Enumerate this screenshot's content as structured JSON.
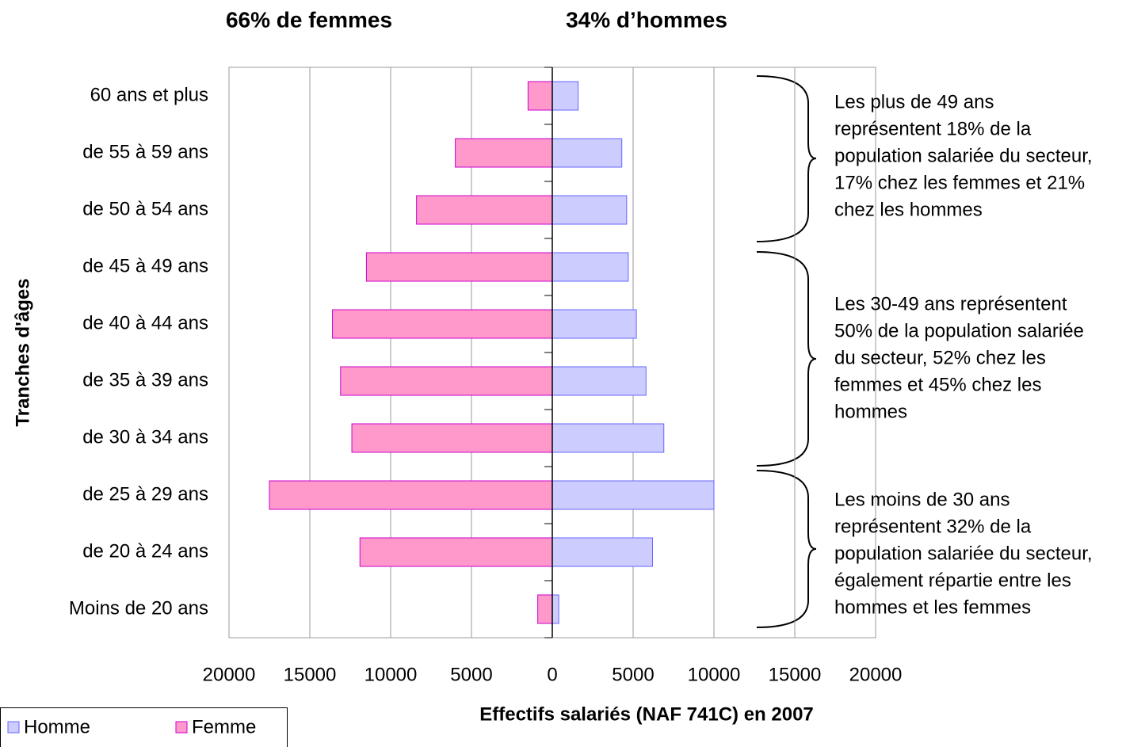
{
  "chart_data": {
    "type": "bar",
    "orientation": "horizontal",
    "headers": [
      {
        "text": "66% de femmes",
        "color": "#cc0099"
      },
      {
        "text": "34% d’hommes",
        "color": "#000000"
      }
    ],
    "xlabel": "Effectifs salariés (NAF 741C) en 2007",
    "ylabel": "Tranches d'âges",
    "categories": [
      "Moins de 20 ans",
      "de 20 à 24 ans",
      "de 25 à 29 ans",
      "de 30 à 34 ans",
      "de 35 à 39 ans",
      "de 40 à 44 ans",
      "de 45 à 49 ans",
      "de 50 à 54 ans",
      "de 55 à 59 ans",
      "60 ans et plus"
    ],
    "series": [
      {
        "name": "Homme",
        "color": "#ccccff",
        "edgecolor": "#6666ff",
        "values": [
          400,
          6200,
          10000,
          6900,
          5800,
          5200,
          4700,
          4600,
          4300,
          1600
        ]
      },
      {
        "name": "Femme",
        "color": "#ff99cc",
        "edgecolor": "#cc00cc",
        "values": [
          -900,
          -11900,
          -17500,
          -12400,
          -13100,
          -13600,
          -11500,
          -8400,
          -6000,
          -1500
        ]
      }
    ],
    "xlim": [
      -20000,
      20000
    ],
    "xticks": [
      {
        "value": -20000,
        "label": "20000"
      },
      {
        "value": -15000,
        "label": "15000"
      },
      {
        "value": -10000,
        "label": "10000"
      },
      {
        "value": -5000,
        "label": "5000"
      },
      0,
      5000,
      10000,
      15000,
      20000
    ],
    "grid": true,
    "legend": "bottom-left",
    "annotations": [
      {
        "lines": [
          "Les plus de 49 ans",
          "représentent 18% de la",
          "population salariée du secteur,",
          "17% chez les femmes et 21%",
          "chez les hommes"
        ]
      },
      {
        "lines": [
          "Les 30-49 ans représentent",
          "50% de la population salariée",
          "du secteur, 52% chez les",
          "femmes et 45% chez les",
          "hommes"
        ]
      },
      {
        "lines": [
          "Les moins de 30 ans",
          "représentent 32% de la",
          "population salariée du secteur,",
          "également répartie entre les",
          "hommes et les femmes"
        ]
      }
    ]
  }
}
